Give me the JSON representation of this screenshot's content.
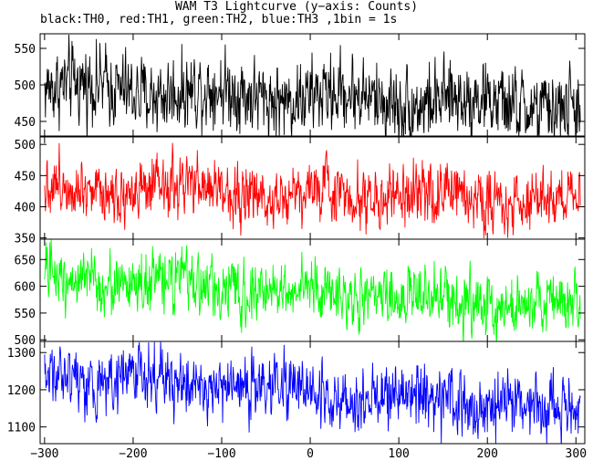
{
  "chart_data": {
    "type": "line",
    "title": "WAM T3 Lightcurve (y−axis: Counts)",
    "subtitle": "black:TH0, red:TH1, green:TH2, blue:TH3 ,1bin = 1s",
    "xlim": [
      -305,
      310
    ],
    "x_ticks": [
      -300,
      -200,
      -100,
      0,
      100,
      200,
      300
    ],
    "x_tick_labels": [
      "−300",
      "−200",
      "−100",
      "0",
      "100",
      "200",
      "300"
    ],
    "grid": false,
    "bin_seconds": 1,
    "panels": [
      {
        "series": "TH0",
        "color": "#000000",
        "ylim": [
          430,
          570
        ],
        "y_ticks": [
          450,
          500,
          550
        ],
        "mean_start": 498,
        "mean_end": 470,
        "noise": 30,
        "x_start": -300,
        "x_end": 305
      },
      {
        "series": "TH1",
        "color": "#ff0000",
        "ylim": [
          348,
          512
        ],
        "y_ticks": [
          350,
          400,
          450,
          500
        ],
        "mean_start": 432,
        "mean_end": 410,
        "noise": 28,
        "x_start": -300,
        "x_end": 305
      },
      {
        "series": "TH2",
        "color": "#00ff00",
        "ylim": [
          497,
          688
        ],
        "y_ticks": [
          500,
          550,
          600,
          650
        ],
        "mean_start": 617,
        "mean_end": 560,
        "noise": 32,
        "x_start": -300,
        "x_end": 305
      },
      {
        "series": "TH3",
        "color": "#0000ff",
        "ylim": [
          1055,
          1330
        ],
        "y_ticks": [
          1100,
          1200,
          1300
        ],
        "mean_start": 1245,
        "mean_end": 1140,
        "noise": 48,
        "x_start": -300,
        "x_end": 305
      }
    ]
  }
}
